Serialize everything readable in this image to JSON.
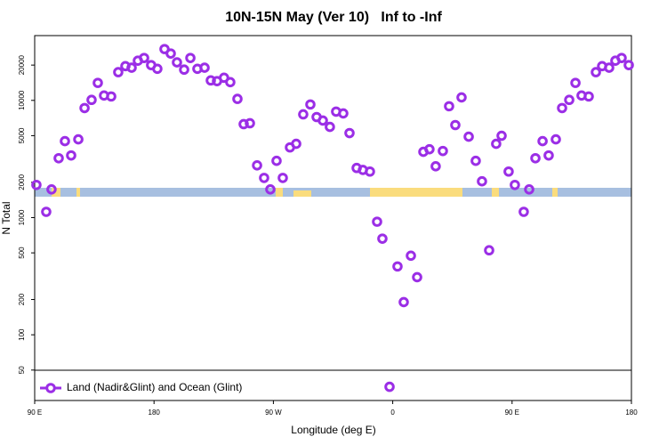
{
  "chart_data": {
    "type": "scatter",
    "title": "10N-15N May (Ver 10)   Inf to -Inf",
    "x_label": "Longitude (deg E)",
    "y_label": "N Total",
    "log_y": true,
    "xlim": [
      90,
      540
    ],
    "xticks": [
      {
        "value": 90,
        "label": "90 E"
      },
      {
        "value": 180,
        "label": "180"
      },
      {
        "value": 270,
        "label": "90 W"
      },
      {
        "value": 360,
        "label": "0"
      },
      {
        "value": 450,
        "label": "90 E"
      },
      {
        "value": 540,
        "label": "180"
      }
    ],
    "ylim": [
      27.5,
      35700
    ],
    "yticks": [
      50,
      100,
      200,
      500,
      1000,
      2000,
      5000,
      10000,
      20000
    ],
    "legend": "bottom-left",
    "series": [
      {
        "name": "Land (Nadir&Glint) and Ocean (Glint)",
        "color": "#9b2ee6",
        "x": [
          91.3,
          98.7,
          102.7,
          108.1,
          112.8,
          117.5,
          122.9,
          127.6,
          132.9,
          137.6,
          142.3,
          147.7,
          153.0,
          158.4,
          163.1,
          167.8,
          172.5,
          177.8,
          182.5,
          187.9,
          192.6,
          197.3,
          202.7,
          207.4,
          212.7,
          218.1,
          222.8,
          227.5,
          232.8,
          237.5,
          242.9,
          247.6,
          252.3,
          257.7,
          263.0,
          267.7,
          272.4,
          277.1,
          282.5,
          287.2,
          292.5,
          297.9,
          302.6,
          307.3,
          312.6,
          317.3,
          322.7,
          327.4,
          332.8,
          337.5,
          342.8,
          348.2,
          352.2,
          357.6,
          363.6,
          368.3,
          373.7,
          378.4,
          383.1,
          387.7,
          392.4,
          397.8,
          402.5,
          407.2,
          411.9,
          417.3,
          422.6,
          427.3,
          432.7,
          438.0,
          442.1,
          447.4,
          452.1,
          458.8,
          462.9,
          467.6,
          473.0,
          477.6,
          483.0,
          487.7,
          493.1,
          497.8,
          502.4,
          507.8,
          513.2,
          517.9,
          523.2,
          527.9,
          532.6,
          538.0
        ],
        "values": [
          1900,
          1120,
          1740,
          3210,
          4490,
          3390,
          4650,
          8600,
          10100,
          14100,
          11000,
          10800,
          17400,
          19600,
          19000,
          21800,
          23000,
          20000,
          18600,
          27400,
          25100,
          21100,
          18300,
          23000,
          18600,
          19000,
          14800,
          14600,
          15600,
          14300,
          10300,
          6270,
          6380,
          2790,
          2180,
          1740,
          3050,
          2180,
          3970,
          4260,
          7600,
          9230,
          7210,
          6730,
          5940,
          8020,
          7740,
          5260,
          2650,
          2550,
          2470,
          922,
          661,
          36,
          383,
          190,
          473,
          310,
          3640,
          3830,
          2740,
          3700,
          8910,
          6160,
          10600,
          4900,
          3050,
          2040,
          526,
          4260,
          4990,
          2470,
          1900,
          1120,
          1740,
          3210,
          4490,
          3390,
          4650,
          8600,
          10100,
          14100,
          11000,
          10800,
          17400,
          19600,
          19000,
          21800,
          23000,
          20000
        ]
      }
    ]
  }
}
